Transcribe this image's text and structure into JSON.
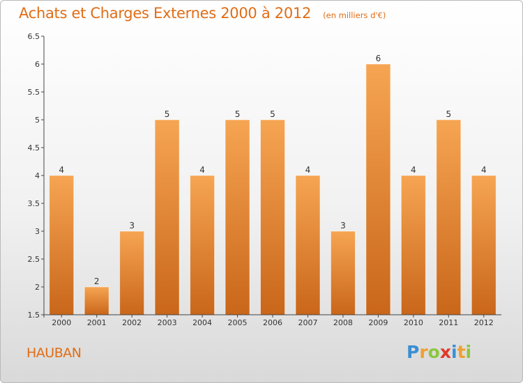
{
  "chart_data": {
    "type": "bar",
    "title": "Achats et Charges Externes 2000 à 2012",
    "subtitle": "(en milliers d'€)",
    "categories": [
      "2000",
      "2001",
      "2002",
      "2003",
      "2004",
      "2005",
      "2006",
      "2007",
      "2008",
      "2009",
      "2010",
      "2011",
      "2012"
    ],
    "values": [
      4,
      2,
      3,
      5,
      4,
      5,
      5,
      4,
      3,
      6,
      4,
      5,
      4
    ],
    "data_labels": [
      "4",
      "2",
      "3",
      "5",
      "4",
      "5",
      "5",
      "4",
      "3",
      "6",
      "4",
      "5",
      "4"
    ],
    "ylim": [
      1.5,
      6.5
    ],
    "yticks": [
      1.5,
      2,
      2.5,
      3,
      3.5,
      4,
      4.5,
      5,
      5.5,
      6,
      6.5
    ],
    "ytick_labels": [
      "1.5",
      "2",
      "2.5",
      "3",
      "3.5",
      "4",
      "4.5",
      "5",
      "5.5",
      "6",
      "6.5"
    ],
    "xlabel": "",
    "ylabel": "",
    "grid": false,
    "colors": {
      "bar_top": "#f6a552",
      "bar_bottom": "#c9661a",
      "title": "#e06d16"
    }
  },
  "place_name": "HAUBAN",
  "logo": {
    "text": "Proxiti",
    "letters": [
      {
        "char": "P",
        "color": "#3a8fd3"
      },
      {
        "char": "r",
        "color": "#f0a030"
      },
      {
        "char": "o",
        "color": "#8cc63f"
      },
      {
        "char": "x",
        "color": "#e0392b"
      },
      {
        "char": "i",
        "color": "#3a8fd3"
      },
      {
        "char": "t",
        "color": "#f0a030"
      },
      {
        "char": "i",
        "color": "#8cc63f"
      }
    ]
  }
}
